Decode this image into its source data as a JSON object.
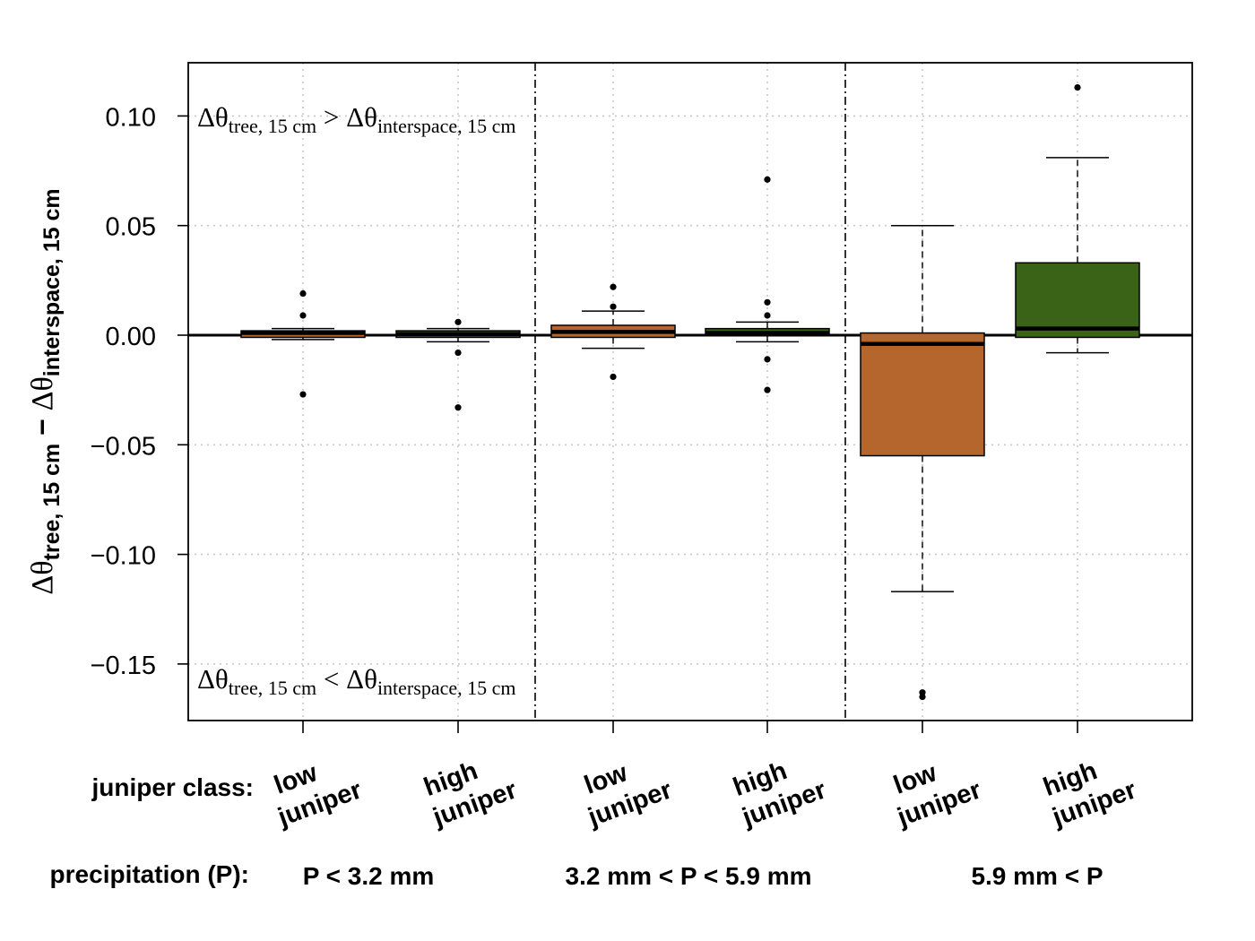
{
  "chart_data": {
    "type": "box",
    "ylabel": "Δθtree, 15 cm − Δθinterspace, 15 cm",
    "ylabel_parts": {
      "delta1": "Δθ",
      "sub1": "tree, 15 cm",
      "minus": " − ",
      "delta2": "Δθ",
      "sub2": "interspace, 15 cm"
    },
    "ylim": [
      -0.175,
      0.125
    ],
    "yticks": [
      0.1,
      0.05,
      0.0,
      -0.05,
      -0.1,
      -0.15
    ],
    "ytick_labels": [
      "0.10",
      "0.05",
      "0.00",
      "−0.05",
      "−0.10",
      "−0.15"
    ],
    "grid": true,
    "reference_line": 0,
    "annotations": {
      "top": {
        "delta1": "Δθ",
        "sub1": "tree, 15 cm",
        "op": " > ",
        "delta2": "Δθ",
        "sub2": "interspace, 15 cm"
      },
      "bottom": {
        "delta1": "Δθ",
        "sub1": "tree, 15 cm",
        "op": " < ",
        "delta2": "Δθ",
        "sub2": "interspace, 15 cm"
      }
    },
    "row_labels": {
      "juniper": "juniper class:",
      "precip": "precipitation (P):"
    },
    "groups": [
      {
        "label": "P < 3.2 mm"
      },
      {
        "label": "3.2 mm < P < 5.9 mm"
      },
      {
        "label": "5.9 mm < P"
      }
    ],
    "categories": [
      {
        "line1": "low",
        "line2": "juniper",
        "group": 0,
        "color": "#b5662c",
        "whisker_low": -0.002,
        "q1": -0.001,
        "median": 0.001,
        "q3": 0.002,
        "whisker_high": 0.003,
        "outliers": [
          0.019,
          0.009,
          -0.027
        ]
      },
      {
        "line1": "high",
        "line2": "juniper",
        "group": 0,
        "color": "#3a6317",
        "whisker_low": -0.003,
        "q1": -0.001,
        "median": 0.0005,
        "q3": 0.002,
        "whisker_high": 0.003,
        "outliers": [
          0.006,
          -0.008,
          -0.033
        ]
      },
      {
        "line1": "low",
        "line2": "juniper",
        "group": 1,
        "color": "#b5662c",
        "whisker_low": -0.006,
        "q1": -0.001,
        "median": 0.0015,
        "q3": 0.0045,
        "whisker_high": 0.011,
        "outliers": [
          0.022,
          0.013,
          -0.019
        ]
      },
      {
        "line1": "high",
        "line2": "juniper",
        "group": 1,
        "color": "#3a6317",
        "whisker_low": -0.003,
        "q1": 0.0,
        "median": 0.001,
        "q3": 0.003,
        "whisker_high": 0.006,
        "outliers": [
          0.071,
          0.015,
          0.009,
          -0.011,
          -0.025
        ]
      },
      {
        "line1": "low",
        "line2": "juniper",
        "group": 2,
        "color": "#b5662c",
        "whisker_low": -0.117,
        "q1": -0.055,
        "median": -0.004,
        "q3": 0.001,
        "whisker_high": 0.05,
        "outliers": [
          -0.163,
          -0.165
        ]
      },
      {
        "line1": "high",
        "line2": "juniper",
        "group": 2,
        "color": "#3a6317",
        "whisker_low": -0.008,
        "q1": -0.001,
        "median": 0.003,
        "q3": 0.033,
        "whisker_high": 0.081,
        "outliers": [
          0.113
        ]
      }
    ]
  }
}
